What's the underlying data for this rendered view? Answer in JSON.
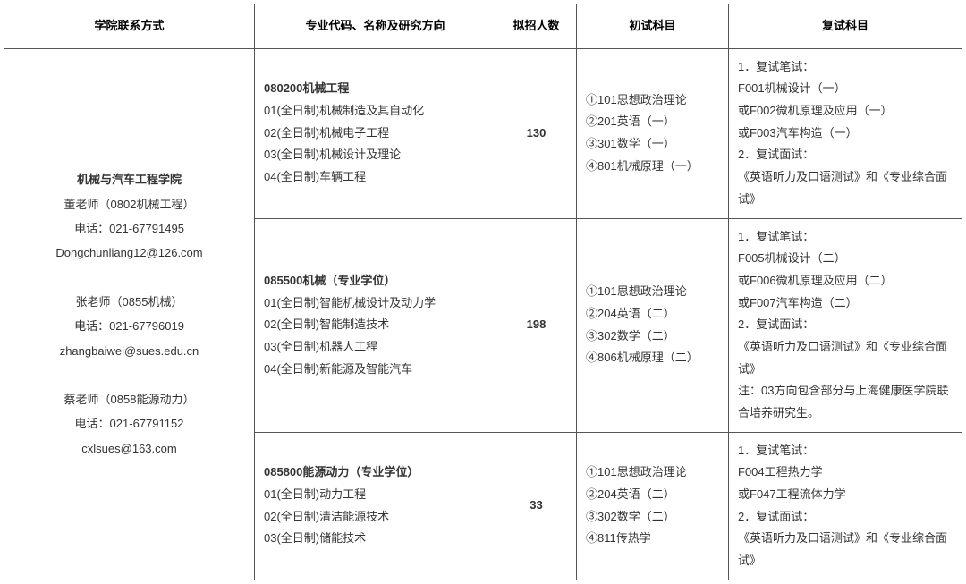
{
  "headers": {
    "col1": "学院联系方式",
    "col2": "专业代码、名称及研究方向",
    "col3": "拟招人数",
    "col4": "初试科目",
    "col5": "复试科目"
  },
  "contact": {
    "title": "机械与汽车工程学院",
    "c1_name": "董老师（0802机械工程）",
    "c1_tel": "电话：021-67791495",
    "c1_mail": "Dongchunliang12@126.com",
    "c2_name": "张老师（0855机械）",
    "c2_tel": "电话：021-67796019",
    "c2_mail": "zhangbaiwei@sues.edu.cn",
    "c3_name": "蔡老师（0858能源动力）",
    "c3_tel": "电话：021-67791152",
    "c3_mail": "cxlsues@163.com"
  },
  "rows": [
    {
      "major_bold": "080200机械工程",
      "major_lines": "01(全日制)机械制造及其自动化\n02(全日制)机械电子工程\n03(全日制)机械设计及理论\n04(全日制)车辆工程",
      "count": "130",
      "prelim": "①101思想政治理论\n②201英语（一）\n③301数学（一）\n④801机械原理（一）",
      "retest": "1．复试笔试：\nF001机械设计（一）\n或F002微机原理及应用（一）\n或F003汽车构造（一）\n2．复试面试：\n《英语听力及口语测试》和《专业综合面试》"
    },
    {
      "major_bold": "085500机械（专业学位）",
      "major_lines": "01(全日制)智能机械设计及动力学\n02(全日制)智能制造技术\n03(全日制)机器人工程\n04(全日制)新能源及智能汽车",
      "count": "198",
      "prelim": "①101思想政治理论\n②204英语（二）\n③302数学（二）\n④806机械原理（二）",
      "retest": "1．复试笔试：\nF005机械设计（二）\n或F006微机原理及应用（二）\n或F007汽车构造（二）\n2．复试面试：\n《英语听力及口语测试》和《专业综合面试》\n注：03方向包含部分与上海健康医学院联合培养研究生。"
    },
    {
      "major_bold": "085800能源动力（专业学位）",
      "major_lines": "01(全日制)动力工程\n02(全日制)清洁能源技术\n03(全日制)储能技术",
      "count": "33",
      "prelim": "①101思想政治理论\n②204英语（二）\n③302数学（二）\n④811传热学",
      "retest": "1．复试笔试：\nF004工程热力学\n 或F047工程流体力学\n2．复试面试：\n《英语听力及口语测试》和《专业综合面试》"
    }
  ]
}
